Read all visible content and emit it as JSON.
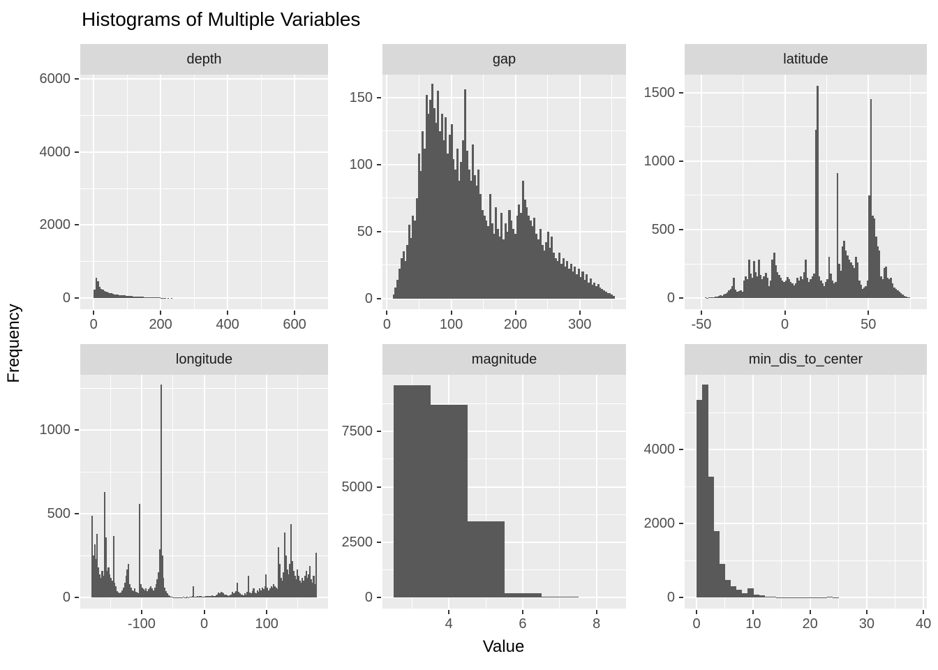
{
  "title": "Histograms of Multiple Variables",
  "x_axis_title": "Value",
  "y_axis_title": "Frequency",
  "colors": {
    "background": "#FFFFFF",
    "panel_bg": "#EBEBEB",
    "strip_bg": "#D9D9D9",
    "strip_text": "#1A1A1A",
    "bar": "#595959",
    "gridline": "#FFFFFF",
    "axis_text": "#4D4D4D",
    "tick_mark": "#333333",
    "title_text": "#000000"
  },
  "layout_hints": {
    "grid": "major and minor white gridlines on grey panels",
    "facets": "2 rows x 3 columns, free x and y scales, strip labels on top",
    "legend": "none"
  },
  "chart_data": [
    {
      "type": "bar",
      "facet": "depth",
      "xlim": [
        -40,
        700
      ],
      "ylim": [
        -300,
        6110
      ],
      "xticks": [
        0,
        200,
        400,
        600
      ],
      "yticks": [
        0,
        2000,
        4000,
        6000
      ],
      "x_minor": [
        100,
        300,
        500,
        700
      ],
      "y_minor": [
        1000,
        3000,
        5000
      ],
      "bin_start": 0,
      "bin_width": 5,
      "counts": [
        230,
        550,
        460,
        320,
        260,
        230,
        200,
        170,
        150,
        140,
        130,
        120,
        110,
        100,
        95,
        90,
        85,
        80,
        75,
        70,
        65,
        60,
        55,
        52,
        50,
        45,
        42,
        40,
        38,
        35,
        32,
        30,
        28,
        26,
        25,
        24,
        22,
        20,
        18,
        15,
        12,
        10,
        8,
        0,
        5,
        0,
        4
      ]
    },
    {
      "type": "bar",
      "facet": "gap",
      "xlim": [
        -7,
        372
      ],
      "ylim": [
        -8,
        167
      ],
      "xticks": [
        0,
        100,
        200,
        300
      ],
      "yticks": [
        0,
        50,
        100,
        150
      ],
      "x_minor": [
        50,
        150,
        250,
        350
      ],
      "y_minor": [
        25,
        75,
        125
      ],
      "bin_start": 9,
      "bin_width": 3,
      "counts": [
        3,
        8,
        14,
        22,
        30,
        35,
        28,
        40,
        55,
        45,
        62,
        58,
        75,
        108,
        95,
        125,
        112,
        152,
        138,
        148,
        160,
        142,
        131,
        155,
        125,
        138,
        118,
        135,
        108,
        122,
        130,
        104,
        96,
        112,
        88,
        102,
        118,
        156,
        110,
        96,
        88,
        115,
        92,
        84,
        96,
        78,
        66,
        62,
        58,
        54,
        78,
        56,
        48,
        68,
        52,
        46,
        64,
        44,
        56,
        50,
        66,
        58,
        52,
        48,
        62,
        70,
        64,
        88,
        74,
        68,
        62,
        58,
        54,
        60,
        48,
        44,
        52,
        40,
        36,
        42,
        50,
        38,
        46,
        34,
        30,
        28,
        34,
        26,
        30,
        24,
        28,
        22,
        26,
        20,
        24,
        18,
        22,
        16,
        20,
        14,
        18,
        12,
        15,
        10,
        12,
        9,
        11,
        8,
        7,
        6,
        5,
        4,
        4,
        3,
        2
      ]
    },
    {
      "type": "bar",
      "facet": "latitude",
      "xlim": [
        -60,
        85
      ],
      "ylim": [
        -80,
        1630
      ],
      "xticks": [
        -50,
        0,
        50
      ],
      "yticks": [
        0,
        500,
        1000,
        1500
      ],
      "x_minor": [
        -25,
        25,
        75
      ],
      "y_minor": [
        250,
        750,
        1250
      ],
      "bin_start": -48,
      "bin_width": 1,
      "counts": [
        5,
        3,
        4,
        6,
        5,
        8,
        10,
        12,
        15,
        20,
        18,
        25,
        30,
        40,
        55,
        70,
        90,
        150,
        60,
        45,
        50,
        55,
        48,
        130,
        160,
        140,
        280,
        180,
        150,
        270,
        190,
        160,
        280,
        170,
        140,
        160,
        185,
        150,
        90,
        130,
        280,
        330,
        240,
        190,
        170,
        150,
        130,
        120,
        130,
        155,
        140,
        120,
        110,
        95,
        110,
        150,
        130,
        160,
        140,
        190,
        280,
        150,
        120,
        140,
        160,
        180,
        1230,
        1550,
        160,
        130,
        110,
        90,
        120,
        140,
        300,
        180,
        130,
        110,
        120,
        910,
        250,
        200,
        380,
        420,
        350,
        310,
        280,
        260,
        240,
        220,
        300,
        260,
        130,
        100,
        70,
        80,
        90,
        130,
        750,
        1450,
        600,
        580,
        450,
        380,
        350,
        160,
        140,
        220,
        230,
        150,
        140,
        150,
        110,
        80,
        70,
        55,
        45,
        35,
        25,
        18,
        12,
        8,
        5
      ]
    },
    {
      "type": "bar",
      "facet": "longitude",
      "xlim": [
        -198,
        198
      ],
      "ylim": [
        -65,
        1330
      ],
      "xticks": [
        -100,
        0,
        100
      ],
      "yticks": [
        0,
        500,
        1000
      ],
      "x_minor": [
        -150,
        -50,
        50,
        150
      ],
      "y_minor": [
        250,
        750,
        1250
      ],
      "bin_start": -180,
      "bin_width": 2,
      "counts": [
        490,
        250,
        320,
        230,
        380,
        180,
        140,
        120,
        160,
        130,
        630,
        360,
        160,
        180,
        140,
        120,
        100,
        370,
        90,
        70,
        40,
        30,
        25,
        30,
        45,
        60,
        90,
        130,
        170,
        200,
        80,
        60,
        45,
        40,
        55,
        35,
        30,
        25,
        560,
        80,
        60,
        50,
        45,
        55,
        40,
        50,
        60,
        70,
        55,
        45,
        60,
        80,
        110,
        150,
        290,
        1270,
        250,
        120,
        60,
        40,
        25,
        15,
        10,
        6,
        4,
        3,
        2,
        2,
        3,
        2,
        2,
        3,
        2,
        4,
        3,
        2,
        5,
        3,
        4,
        4,
        8,
        70,
        6,
        4,
        8,
        6,
        10,
        8,
        6,
        5,
        6,
        8,
        10,
        8,
        12,
        10,
        14,
        12,
        10,
        15,
        20,
        30,
        25,
        35,
        30,
        25,
        20,
        18,
        15,
        12,
        15,
        20,
        35,
        25,
        30,
        40,
        90,
        35,
        25,
        20,
        18,
        15,
        25,
        20,
        35,
        130,
        30,
        25,
        40,
        55,
        30,
        25,
        45,
        35,
        55,
        45,
        60,
        50,
        70,
        140,
        60,
        45,
        55,
        70,
        60,
        80,
        70,
        60,
        50,
        300,
        200,
        120,
        100,
        150,
        390,
        250,
        170,
        140,
        200,
        440,
        220,
        160,
        130,
        110,
        170,
        130,
        100,
        90,
        120,
        100,
        130,
        160,
        120,
        140,
        190,
        110,
        90,
        130,
        80,
        270
      ]
    },
    {
      "type": "bar",
      "facet": "magnitude",
      "xlim": [
        2.2,
        8.8
      ],
      "ylim": [
        -490,
        10060
      ],
      "xticks": [
        4,
        6,
        8
      ],
      "yticks": [
        0,
        2500,
        5000,
        7500
      ],
      "x_minor": [
        3,
        5,
        7
      ],
      "y_minor": [
        1250,
        3750,
        6250,
        8750
      ],
      "bin_start": 2.5,
      "bin_width": 1,
      "counts": [
        9600,
        8700,
        3450,
        190,
        30
      ]
    },
    {
      "type": "bar",
      "facet": "min_dis_to_center",
      "xlim": [
        -2.1,
        40.6
      ],
      "ylim": [
        -300,
        6020
      ],
      "xticks": [
        0,
        10,
        20,
        30,
        40
      ],
      "yticks": [
        0,
        2000,
        4000
      ],
      "x_minor": [
        5,
        15,
        25,
        35
      ],
      "y_minor": [
        1000,
        3000,
        5000
      ],
      "bin_start": 0,
      "bin_width": 1,
      "counts": [
        5350,
        5750,
        3270,
        1800,
        900,
        480,
        300,
        200,
        120,
        250,
        80,
        50,
        25,
        15,
        10,
        8,
        6,
        5,
        4,
        3,
        3,
        2,
        2,
        30,
        2
      ]
    }
  ]
}
